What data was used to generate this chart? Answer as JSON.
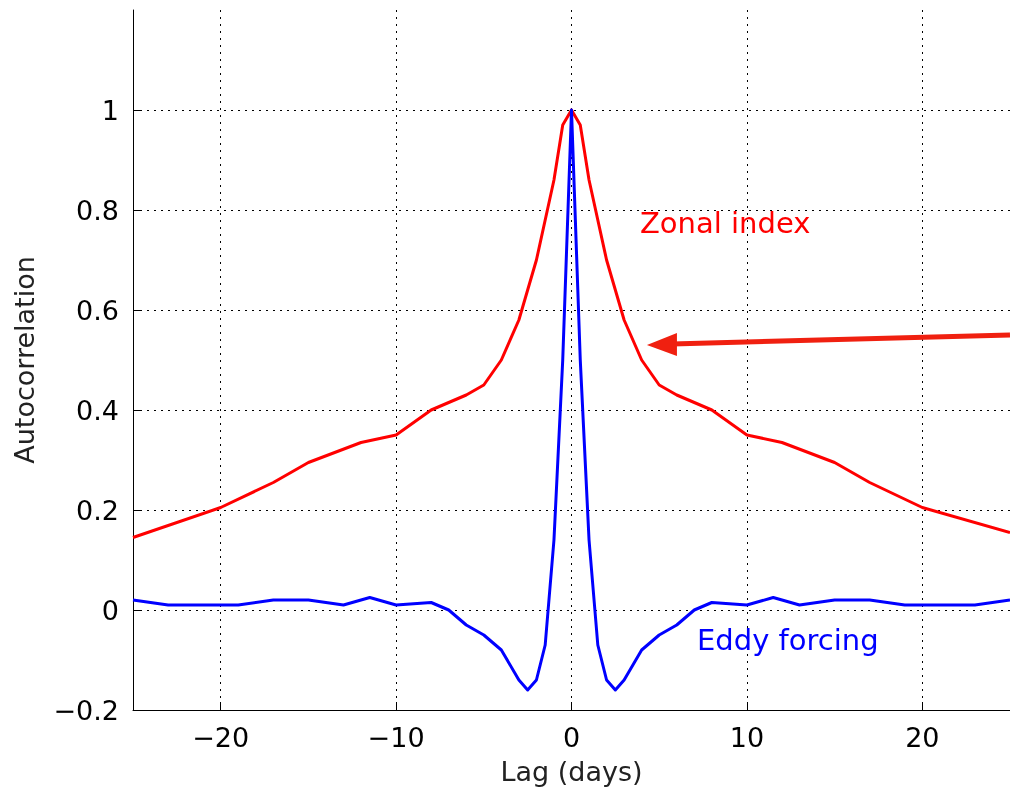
{
  "chart_data": {
    "type": "line",
    "xlabel": "Lag (days)",
    "ylabel": "Autocorrelation",
    "xlim": [
      -25,
      25
    ],
    "xticks": [
      -20,
      -10,
      0,
      10,
      20
    ],
    "ylim": [
      -0.2,
      1.2
    ],
    "yticks": [
      -0.2,
      0,
      0.2,
      0.4,
      0.6,
      0.8,
      1
    ],
    "grid": true,
    "marker": "none",
    "line_style": "solid",
    "series": [
      {
        "name": "Zonal index",
        "color": "#ff0000",
        "x": [
          -25,
          -20,
          -17,
          -15,
          -12,
          -10,
          -8,
          -6,
          -5,
          -4,
          -3,
          -2,
          -1,
          -0.5,
          0,
          0.5,
          1,
          2,
          3,
          4,
          5,
          6,
          8,
          10,
          12,
          15,
          17,
          20,
          25
        ],
        "values": [
          0.145,
          0.205,
          0.255,
          0.295,
          0.335,
          0.35,
          0.4,
          0.43,
          0.45,
          0.5,
          0.58,
          0.7,
          0.86,
          0.97,
          1,
          0.97,
          0.86,
          0.7,
          0.58,
          0.5,
          0.45,
          0.43,
          0.4,
          0.35,
          0.335,
          0.295,
          0.255,
          0.205,
          0.155
        ]
      },
      {
        "name": "Eddy forcing",
        "color": "#0000ff",
        "x": [
          -25,
          -23,
          -21,
          -19,
          -17,
          -15,
          -13,
          -11.5,
          -10,
          -8,
          -7,
          -6,
          -5,
          -4,
          -3,
          -2.5,
          -2,
          -1.5,
          -1,
          -0.5,
          0,
          0.5,
          1,
          1.5,
          2,
          2.5,
          3,
          4,
          5,
          6,
          7,
          8,
          10,
          11.5,
          13,
          15,
          17,
          19,
          21,
          23,
          25
        ],
        "values": [
          0.02,
          0.01,
          0.01,
          0.01,
          0.02,
          0.02,
          0.01,
          0.025,
          0.01,
          0.015,
          0,
          -0.03,
          -0.05,
          -0.08,
          -0.14,
          -0.16,
          -0.14,
          -0.07,
          0.14,
          0.5,
          1,
          0.5,
          0.14,
          -0.07,
          -0.14,
          -0.16,
          -0.14,
          -0.08,
          -0.05,
          -0.03,
          0,
          0.015,
          0.01,
          0.025,
          0.01,
          0.02,
          0.02,
          0.01,
          0.01,
          0.01,
          0.02
        ]
      }
    ]
  }
}
